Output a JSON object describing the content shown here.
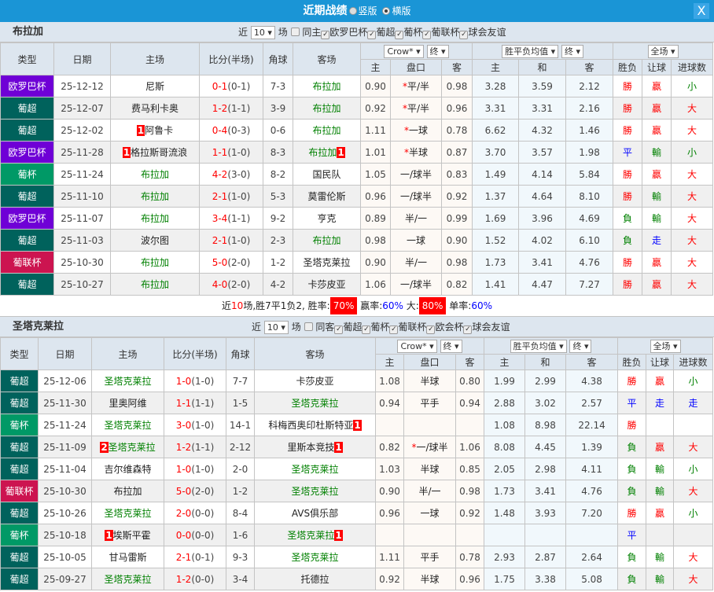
{
  "title": "近期战绩",
  "view_vertical": "竖版",
  "view_horizontal": "横版",
  "close": "X",
  "colors": {
    "欧罗巴杯": "#6f00d6",
    "葡超": "#00625c",
    "葡杯": "#009966",
    "葡联杯": "#cc1450",
    "accent": "#1a95d6"
  },
  "sections": [
    {
      "team": "布拉加",
      "near": "近",
      "count": "10",
      "unit": "场",
      "same": "同主",
      "leagues": [
        "欧罗巴杯",
        "葡超",
        "葡杯",
        "葡联杯",
        "球会友谊"
      ],
      "headers": {
        "type": "类型",
        "date": "日期",
        "home": "主场",
        "score": "比分(半场)",
        "corner": "角球",
        "away": "客场",
        "company": "Crow*",
        "end": "终",
        "avg": "胜平负均值",
        "end2": "终",
        "scope": "全场",
        "h": "主",
        "line": "盘口",
        "a": "客",
        "o1": "主",
        "ox": "和",
        "o2": "客",
        "res": "胜负",
        "hc": "让球",
        "ou": "进球数"
      },
      "rows": [
        {
          "type": "欧罗巴杯",
          "date": "25-12-12",
          "home": "尼斯",
          "hr": "",
          "score": "0-1",
          "ht": "(0-1)",
          "corner": "7-3",
          "away": "布拉加",
          "ar": "",
          "h": "0.90",
          "line": "平/半",
          "star": true,
          "a": "0.98",
          "o1": "3.28",
          "ox": "3.59",
          "o2": "2.12",
          "res": "勝",
          "hc": "贏",
          "ou": "小"
        },
        {
          "type": "葡超",
          "date": "25-12-07",
          "home": "费马利卡奥",
          "hr": "",
          "score": "1-2",
          "ht": "(1-1)",
          "corner": "3-9",
          "away": "布拉加",
          "ar": "",
          "h": "0.92",
          "line": "平/半",
          "star": true,
          "a": "0.96",
          "o1": "3.31",
          "ox": "3.31",
          "o2": "2.16",
          "res": "勝",
          "hc": "贏",
          "ou": "大"
        },
        {
          "type": "葡超",
          "date": "25-12-02",
          "home": "阿鲁卡",
          "hr": "1",
          "score": "0-4",
          "ht": "(0-3)",
          "corner": "0-6",
          "away": "布拉加",
          "ar": "",
          "h": "1.11",
          "line": "一球",
          "star": true,
          "a": "0.78",
          "o1": "6.62",
          "ox": "4.32",
          "o2": "1.46",
          "res": "勝",
          "hc": "贏",
          "ou": "大"
        },
        {
          "type": "欧罗巴杯",
          "date": "25-11-28",
          "home": "格拉斯哥流浪",
          "hr": "1",
          "score": "1-1",
          "ht": "(1-0)",
          "corner": "8-3",
          "away": "布拉加",
          "ar": "1",
          "h": "1.01",
          "line": "半球",
          "star": true,
          "a": "0.87",
          "o1": "3.70",
          "ox": "3.57",
          "o2": "1.98",
          "res": "平",
          "hc": "輸",
          "ou": "小"
        },
        {
          "type": "葡杯",
          "date": "25-11-24",
          "home": "布拉加",
          "hr": "",
          "score": "4-2",
          "ht": "(3-0)",
          "corner": "8-2",
          "away": "国民队",
          "ar": "",
          "h": "1.05",
          "line": "一/球半",
          "star": false,
          "a": "0.83",
          "o1": "1.49",
          "ox": "4.14",
          "o2": "5.84",
          "res": "勝",
          "hc": "贏",
          "ou": "大"
        },
        {
          "type": "葡超",
          "date": "25-11-10",
          "home": "布拉加",
          "hr": "",
          "score": "2-1",
          "ht": "(1-0)",
          "corner": "5-3",
          "away": "莫雷伦斯",
          "ar": "",
          "h": "0.96",
          "line": "一/球半",
          "star": false,
          "a": "0.92",
          "o1": "1.37",
          "ox": "4.64",
          "o2": "8.10",
          "res": "勝",
          "hc": "輸",
          "ou": "大"
        },
        {
          "type": "欧罗巴杯",
          "date": "25-11-07",
          "home": "布拉加",
          "hr": "",
          "score": "3-4",
          "ht": "(1-1)",
          "corner": "9-2",
          "away": "亨克",
          "ar": "",
          "h": "0.89",
          "line": "半/一",
          "star": false,
          "a": "0.99",
          "o1": "1.69",
          "ox": "3.96",
          "o2": "4.69",
          "res": "負",
          "hc": "輸",
          "ou": "大"
        },
        {
          "type": "葡超",
          "date": "25-11-03",
          "home": "波尔图",
          "hr": "",
          "score": "2-1",
          "ht": "(1-0)",
          "corner": "2-3",
          "away": "布拉加",
          "ar": "",
          "h": "0.98",
          "line": "一球",
          "star": false,
          "a": "0.90",
          "o1": "1.52",
          "ox": "4.02",
          "o2": "6.10",
          "res": "負",
          "hc": "走",
          "ou": "大"
        },
        {
          "type": "葡联杯",
          "date": "25-10-30",
          "home": "布拉加",
          "hr": "",
          "score": "5-0",
          "ht": "(2-0)",
          "corner": "1-2",
          "away": "圣塔克莱拉",
          "ar": "",
          "h": "0.90",
          "line": "半/一",
          "star": false,
          "a": "0.98",
          "o1": "1.73",
          "ox": "3.41",
          "o2": "4.76",
          "res": "勝",
          "hc": "贏",
          "ou": "大"
        },
        {
          "type": "葡超",
          "date": "25-10-27",
          "home": "布拉加",
          "hr": "",
          "score": "4-0",
          "ht": "(2-0)",
          "corner": "4-2",
          "away": "卡莎皮亚",
          "ar": "",
          "h": "1.06",
          "line": "一/球半",
          "star": false,
          "a": "0.82",
          "o1": "1.41",
          "ox": "4.47",
          "o2": "7.27",
          "res": "勝",
          "hc": "贏",
          "ou": "大"
        }
      ],
      "summary": {
        "p1": "近",
        "n": "10",
        "p2": "场,胜7平1负2, 胜率:",
        "win": "70%",
        "p3": " 赢率:",
        "cover": "60%",
        "p4": " 大:",
        "over": "80%",
        "p5": " 单率:",
        "odd": "60%"
      }
    },
    {
      "team": "圣塔克莱拉",
      "near": "近",
      "count": "10",
      "unit": "场",
      "same": "同客",
      "leagues": [
        "葡超",
        "葡杯",
        "葡联杯",
        "欧会杯",
        "球会友谊"
      ],
      "headers": {
        "type": "类型",
        "date": "日期",
        "home": "主场",
        "score": "比分(半场)",
        "corner": "角球",
        "away": "客场",
        "company": "Crow*",
        "end": "终",
        "avg": "胜平负均值",
        "end2": "终",
        "scope": "全场",
        "h": "主",
        "line": "盘口",
        "a": "客",
        "o1": "主",
        "ox": "和",
        "o2": "客",
        "res": "胜负",
        "hc": "让球",
        "ou": "进球数"
      },
      "rows": [
        {
          "type": "葡超",
          "date": "25-12-06",
          "home": "圣塔克莱拉",
          "hr": "",
          "score": "1-0",
          "ht": "(1-0)",
          "corner": "7-7",
          "away": "卡莎皮亚",
          "ar": "",
          "h": "1.08",
          "line": "半球",
          "star": false,
          "a": "0.80",
          "o1": "1.99",
          "ox": "2.99",
          "o2": "4.38",
          "res": "勝",
          "hc": "贏",
          "ou": "小"
        },
        {
          "type": "葡超",
          "date": "25-11-30",
          "home": "里奥阿维",
          "hr": "",
          "score": "1-1",
          "ht": "(1-1)",
          "corner": "1-5",
          "away": "圣塔克莱拉",
          "ar": "",
          "h": "0.94",
          "line": "平手",
          "star": false,
          "a": "0.94",
          "o1": "2.88",
          "ox": "3.02",
          "o2": "2.57",
          "res": "平",
          "hc": "走",
          "ou": "走"
        },
        {
          "type": "葡杯",
          "date": "25-11-24",
          "home": "圣塔克莱拉",
          "hr": "",
          "score": "3-0",
          "ht": "(1-0)",
          "corner": "14-1",
          "away": "科梅西奥印杜斯特亚",
          "ar": "1",
          "h": "",
          "line": "",
          "star": false,
          "a": "",
          "o1": "1.08",
          "ox": "8.98",
          "o2": "22.14",
          "res": "勝",
          "hc": "",
          "ou": ""
        },
        {
          "type": "葡超",
          "date": "25-11-09",
          "home": "圣塔克莱拉",
          "hr": "2",
          "score": "1-2",
          "ht": "(1-1)",
          "corner": "2-12",
          "away": "里斯本竞技",
          "ar": "1",
          "h": "0.82",
          "line": "一/球半",
          "star": true,
          "a": "1.06",
          "o1": "8.08",
          "ox": "4.45",
          "o2": "1.39",
          "res": "負",
          "hc": "贏",
          "ou": "大"
        },
        {
          "type": "葡超",
          "date": "25-11-04",
          "home": "吉尔维森特",
          "hr": "",
          "score": "1-0",
          "ht": "(1-0)",
          "corner": "2-0",
          "away": "圣塔克莱拉",
          "ar": "",
          "h": "1.03",
          "line": "半球",
          "star": false,
          "a": "0.85",
          "o1": "2.05",
          "ox": "2.98",
          "o2": "4.11",
          "res": "負",
          "hc": "輸",
          "ou": "小"
        },
        {
          "type": "葡联杯",
          "date": "25-10-30",
          "home": "布拉加",
          "hr": "",
          "score": "5-0",
          "ht": "(2-0)",
          "corner": "1-2",
          "away": "圣塔克莱拉",
          "ar": "",
          "h": "0.90",
          "line": "半/一",
          "star": false,
          "a": "0.98",
          "o1": "1.73",
          "ox": "3.41",
          "o2": "4.76",
          "res": "負",
          "hc": "輸",
          "ou": "大"
        },
        {
          "type": "葡超",
          "date": "25-10-26",
          "home": "圣塔克莱拉",
          "hr": "",
          "score": "2-0",
          "ht": "(0-0)",
          "corner": "8-4",
          "away": "AVS俱乐部",
          "ar": "",
          "h": "0.96",
          "line": "一球",
          "star": false,
          "a": "0.92",
          "o1": "1.48",
          "ox": "3.93",
          "o2": "7.20",
          "res": "勝",
          "hc": "贏",
          "ou": "小"
        },
        {
          "type": "葡杯",
          "date": "25-10-18",
          "home": "埃斯平霍",
          "hr": "1",
          "score": "0-0",
          "ht": "(0-0)",
          "corner": "1-6",
          "away": "圣塔克莱拉",
          "ar": "1",
          "h": "",
          "line": "",
          "star": false,
          "a": "",
          "o1": "",
          "ox": "",
          "o2": "",
          "res": "平",
          "hc": "",
          "ou": ""
        },
        {
          "type": "葡超",
          "date": "25-10-05",
          "home": "甘马雷斯",
          "hr": "",
          "score": "2-1",
          "ht": "(0-1)",
          "corner": "9-3",
          "away": "圣塔克莱拉",
          "ar": "",
          "h": "1.11",
          "line": "平手",
          "star": false,
          "a": "0.78",
          "o1": "2.93",
          "ox": "2.87",
          "o2": "2.64",
          "res": "負",
          "hc": "輸",
          "ou": "大"
        },
        {
          "type": "葡超",
          "date": "25-09-27",
          "home": "圣塔克莱拉",
          "hr": "",
          "score": "1-2",
          "ht": "(0-0)",
          "corner": "3-4",
          "away": "托德拉",
          "ar": "",
          "h": "0.92",
          "line": "半球",
          "star": false,
          "a": "0.96",
          "o1": "1.75",
          "ox": "3.38",
          "o2": "5.08",
          "res": "負",
          "hc": "輸",
          "ou": "大"
        }
      ]
    }
  ]
}
